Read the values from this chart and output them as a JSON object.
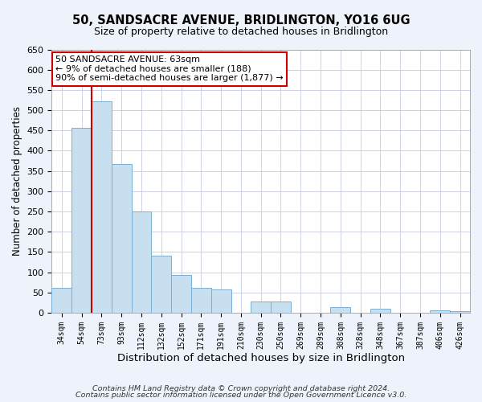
{
  "title": "50, SANDSACRE AVENUE, BRIDLINGTON, YO16 6UG",
  "subtitle": "Size of property relative to detached houses in Bridlington",
  "xlabel": "Distribution of detached houses by size in Bridlington",
  "ylabel": "Number of detached properties",
  "bar_labels": [
    "34sqm",
    "54sqm",
    "73sqm",
    "93sqm",
    "112sqm",
    "132sqm",
    "152sqm",
    "171sqm",
    "191sqm",
    "210sqm",
    "230sqm",
    "250sqm",
    "269sqm",
    "289sqm",
    "308sqm",
    "328sqm",
    "348sqm",
    "367sqm",
    "387sqm",
    "406sqm",
    "426sqm"
  ],
  "bar_values": [
    62,
    456,
    521,
    368,
    250,
    141,
    93,
    62,
    57,
    0,
    27,
    27,
    0,
    0,
    13,
    0,
    10,
    0,
    0,
    5,
    3
  ],
  "bar_color": "#c8dff0",
  "bar_edge_color": "#7aafd4",
  "ylim": [
    0,
    650
  ],
  "yticks": [
    0,
    50,
    100,
    150,
    200,
    250,
    300,
    350,
    400,
    450,
    500,
    550,
    600,
    650
  ],
  "prop_line_color": "#cc0000",
  "annotation_line1": "50 SANDSACRE AVENUE: 63sqm",
  "annotation_line2": "← 9% of detached houses are smaller (188)",
  "annotation_line3": "90% of semi-detached houses are larger (1,877) →",
  "annotation_box_color": "#ffffff",
  "annotation_box_edge": "#cc0000",
  "footer_line1": "Contains HM Land Registry data © Crown copyright and database right 2024.",
  "footer_line2": "Contains public sector information licensed under the Open Government Licence v3.0.",
  "background_color": "#eef2fa",
  "plot_bg_color": "#ffffff",
  "grid_color": "#c5cce0",
  "title_fontsize": 10.5,
  "subtitle_fontsize": 9
}
